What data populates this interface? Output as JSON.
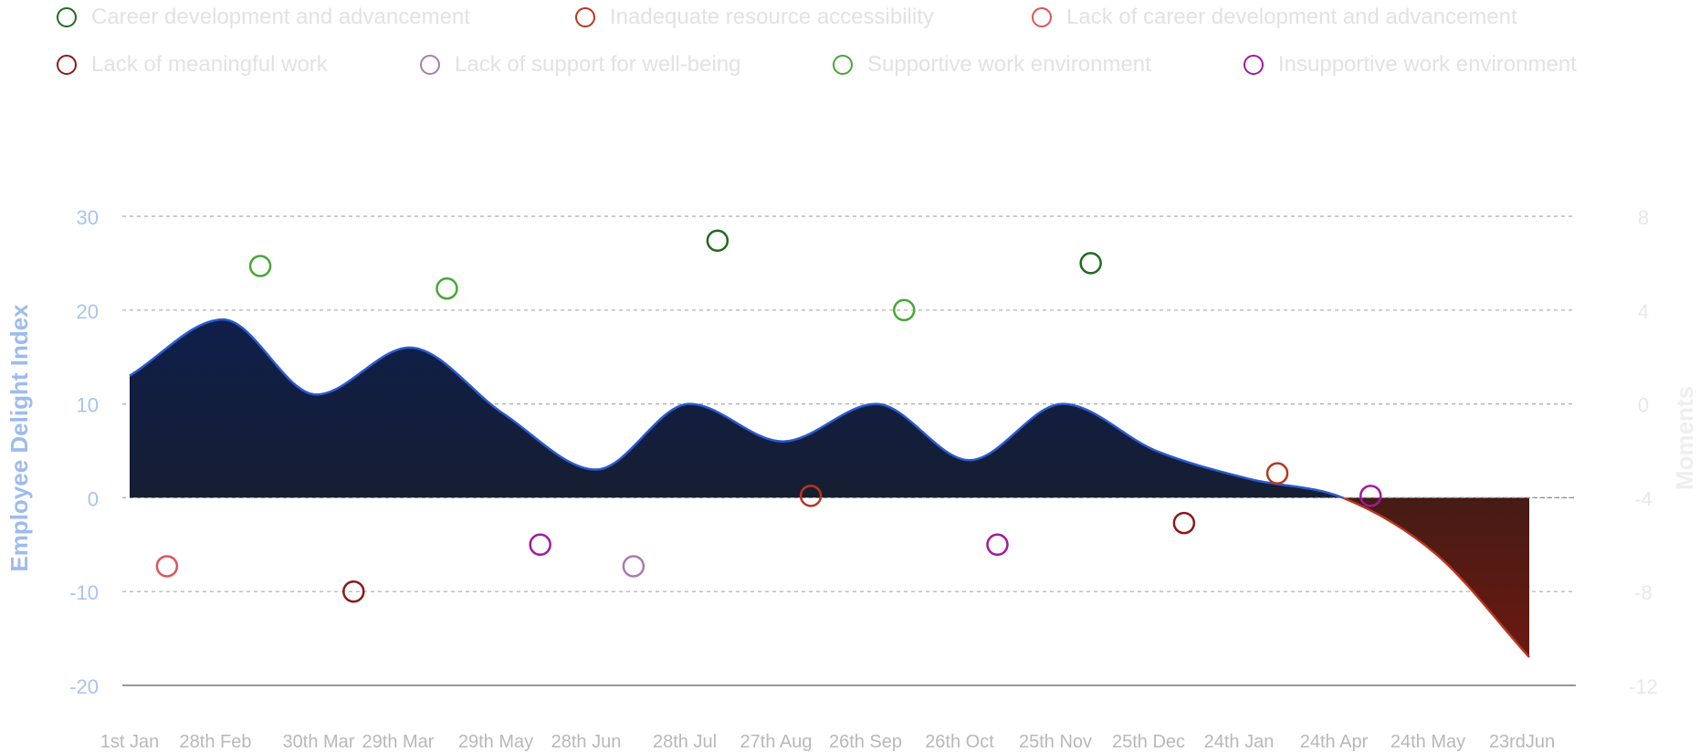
{
  "legend": {
    "items": [
      {
        "label": "Career development and advancement",
        "color": "#1f6b1f"
      },
      {
        "label": "Inadequate resource accessibility",
        "color": "#b8361f"
      },
      {
        "label": "Lack of career development and advancement",
        "color": "#e0525a"
      },
      {
        "label": "Lack of meaningful work",
        "color": "#8b1a1a"
      },
      {
        "label": "Lack of support for well-being",
        "color": "#a77bb0"
      },
      {
        "label": "Supportive work environment",
        "color": "#47a637"
      },
      {
        "label": "Insupportive work environment",
        "color": "#a01a9f"
      }
    ]
  },
  "chart_data": {
    "type": "area",
    "title": "",
    "ylabel": "Employee Delight Index",
    "y2label": "Moments",
    "ylim": [
      -20,
      30
    ],
    "y2lim": [
      -12,
      8
    ],
    "yticks": [
      "30",
      "20",
      "10",
      "0",
      "-10",
      "-20"
    ],
    "y2ticks": [
      "8",
      "4",
      "0",
      "-4",
      "-8",
      "-12"
    ],
    "grid": true,
    "legend_position": "top",
    "x_tick_labels": [
      "1st Jan",
      "28th Feb",
      "30th Mar",
      "29th Mar",
      "29th May",
      "28th Jun",
      "28th Jul",
      "27th Aug",
      "26th Sep",
      "26th Oct",
      "25th Nov",
      "25th Dec",
      "24th Jan",
      "24th Apr",
      "24th May",
      "23rdJun"
    ],
    "series": [
      {
        "kind": "area",
        "x_index": [
          0,
          1,
          2,
          3,
          4,
          5,
          6,
          7,
          8,
          9,
          10,
          11,
          12,
          13,
          14,
          15
        ],
        "values": [
          13,
          19,
          11,
          16,
          9,
          3,
          10,
          6,
          10,
          4,
          10,
          5,
          2,
          0,
          -6,
          -17
        ],
        "positive_color": "#0f1f4a",
        "negative_color": "#6b1a10",
        "line_color": "#2a5bd0"
      }
    ],
    "points": [
      {
        "series": "Lack of career development and advancement",
        "x_index": 0.4,
        "y": -7.3
      },
      {
        "series": "Supportive work environment",
        "x_index": 1.4,
        "y": 24.7
      },
      {
        "series": "Lack of meaningful work",
        "x_index": 2.4,
        "y": -10
      },
      {
        "series": "Supportive work environment",
        "x_index": 3.4,
        "y": 22.3
      },
      {
        "series": "Insupportive work environment",
        "x_index": 4.4,
        "y": -5
      },
      {
        "series": "Lack of support for well-being",
        "x_index": 5.4,
        "y": -7.3
      },
      {
        "series": "Career development and advancement",
        "x_index": 6.3,
        "y": 27.4
      },
      {
        "series": "Inadequate resource accessibility",
        "x_index": 7.3,
        "y": 0.2
      },
      {
        "series": "Supportive work environment",
        "x_index": 8.3,
        "y": 20
      },
      {
        "series": "Insupportive work environment",
        "x_index": 9.3,
        "y": -5
      },
      {
        "series": "Career development and advancement",
        "x_index": 10.3,
        "y": 25
      },
      {
        "series": "Lack of meaningful work",
        "x_index": 11.3,
        "y": -2.7
      },
      {
        "series": "Inadequate resource accessibility",
        "x_index": 12.3,
        "y": 2.6
      },
      {
        "series": "Insupportive work environment",
        "x_index": 13.3,
        "y": 0.2
      }
    ]
  }
}
